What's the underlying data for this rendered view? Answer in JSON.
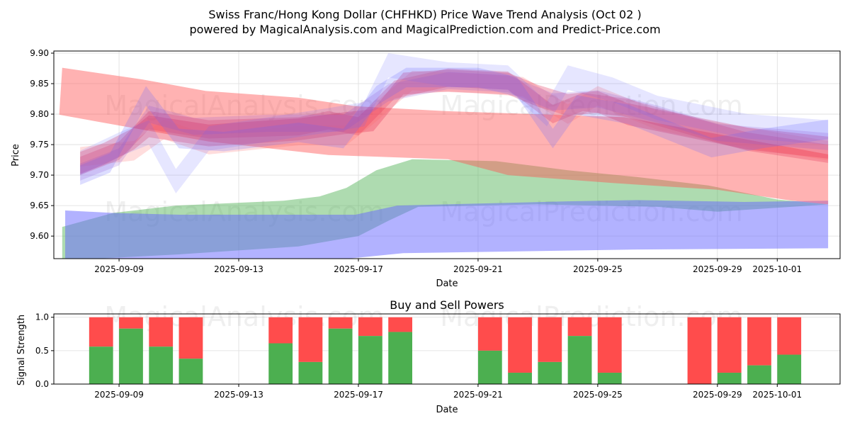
{
  "chart_data": [
    {
      "type": "area",
      "title": "Swiss Franc/Hong Kong Dollar (CHFHKD) Price Wave Trend Analysis (Oct 02 )",
      "subtitle": "powered by MagicalAnalysis.com and MagicalPrediction.com and Predict-Price.com",
      "xlabel": "Date",
      "ylabel": "Price",
      "x_origin": "2025-09-09",
      "xlim_days": [
        -2.18,
        24.1
      ],
      "ylim": [
        9.563,
        9.9035
      ],
      "grid": true,
      "yticks": [
        "9.60",
        "9.65",
        "9.70",
        "9.75",
        "9.80",
        "9.85",
        "9.90"
      ],
      "xticks": [
        {
          "label": "2025-09-09",
          "day": 0
        },
        {
          "label": "2025-09-13",
          "day": 4
        },
        {
          "label": "2025-09-17",
          "day": 8
        },
        {
          "label": "2025-09-21",
          "day": 12
        },
        {
          "label": "2025-09-25",
          "day": 16
        },
        {
          "label": "2025-09-29",
          "day": 20
        },
        {
          "label": "2025-10-01",
          "day": 22
        }
      ],
      "bands": [
        {
          "name": "green-band",
          "color": "#4caf50",
          "opacity": 0.45,
          "upper": [
            [
              -1.9,
              9.615
            ],
            [
              -0.2,
              9.638
            ],
            [
              1.9,
              9.65
            ],
            [
              5.5,
              9.658
            ],
            [
              6.7,
              9.665
            ],
            [
              7.6,
              9.679
            ],
            [
              8.6,
              9.708
            ],
            [
              9.8,
              9.726
            ],
            [
              12.6,
              9.723
            ],
            [
              15,
              9.708
            ],
            [
              17.3,
              9.697
            ],
            [
              19.7,
              9.683
            ],
            [
              22,
              9.66
            ],
            [
              23.7,
              9.652
            ]
          ],
          "lower": [
            [
              -1.9,
              9.56
            ],
            [
              2,
              9.57
            ],
            [
              6,
              9.583
            ],
            [
              8,
              9.6
            ],
            [
              9,
              9.625
            ],
            [
              10,
              9.648
            ],
            [
              14,
              9.652
            ],
            [
              18,
              9.648
            ],
            [
              20,
              9.64
            ],
            [
              23.7,
              9.652
            ]
          ]
        },
        {
          "name": "blue-band",
          "color": "#6666ff",
          "opacity": 0.5,
          "upper": [
            [
              -1.8,
              9.642
            ],
            [
              -0.2,
              9.638
            ],
            [
              2,
              9.635
            ],
            [
              7.9,
              9.635
            ],
            [
              9.3,
              9.65
            ],
            [
              15,
              9.657
            ],
            [
              17.3,
              9.659
            ],
            [
              20.9,
              9.656
            ],
            [
              23.7,
              9.658
            ]
          ],
          "lower": [
            [
              -1.8,
              9.54
            ],
            [
              5,
              9.55
            ],
            [
              9.5,
              9.572
            ],
            [
              17.3,
              9.578
            ],
            [
              23.7,
              9.58
            ]
          ]
        },
        {
          "name": "red-band",
          "color": "#ff5555",
          "opacity": 0.45,
          "upper": [
            [
              -1.9,
              9.876
            ],
            [
              0.76,
              9.857
            ],
            [
              2.9,
              9.838
            ],
            [
              6,
              9.827
            ],
            [
              7.9,
              9.813
            ],
            [
              10.9,
              9.805
            ],
            [
              16.9,
              9.795
            ],
            [
              23.7,
              9.734
            ]
          ],
          "lower": [
            [
              -2.0,
              9.799
            ],
            [
              3,
              9.755
            ],
            [
              7,
              9.733
            ],
            [
              11,
              9.726
            ],
            [
              13,
              9.7
            ],
            [
              16.5,
              9.687
            ],
            [
              20,
              9.676
            ],
            [
              22.5,
              9.658
            ],
            [
              23.7,
              9.652
            ]
          ]
        }
      ],
      "waves": [
        {
          "color": "#e0204a",
          "opacity": 0.28,
          "half_width": 0.018,
          "points": [
            [
              -1.3,
              9.72
            ],
            [
              -0.5,
              9.735
            ],
            [
              0.5,
              9.76
            ],
            [
              1,
              9.78
            ],
            [
              3,
              9.765
            ],
            [
              6,
              9.775
            ],
            [
              7.5,
              9.785
            ],
            [
              8.5,
              9.79
            ],
            [
              9.5,
              9.85
            ],
            [
              11,
              9.855
            ],
            [
              13,
              9.85
            ],
            [
              14,
              9.83
            ],
            [
              15,
              9.815
            ],
            [
              16,
              9.82
            ],
            [
              17,
              9.8
            ],
            [
              19,
              9.78
            ],
            [
              21,
              9.76
            ],
            [
              23.7,
              9.745
            ]
          ]
        },
        {
          "color": "#e0204a",
          "opacity": 0.25,
          "half_width": 0.015,
          "points": [
            [
              -1.3,
              9.715
            ],
            [
              0,
              9.74
            ],
            [
              1,
              9.79
            ],
            [
              3,
              9.775
            ],
            [
              6,
              9.78
            ],
            [
              7,
              9.79
            ],
            [
              8,
              9.78
            ],
            [
              9.2,
              9.84
            ],
            [
              11,
              9.86
            ],
            [
              13,
              9.855
            ],
            [
              14.5,
              9.8
            ],
            [
              15.5,
              9.82
            ],
            [
              17,
              9.81
            ],
            [
              19.5,
              9.775
            ],
            [
              21,
              9.755
            ],
            [
              23.7,
              9.735
            ]
          ]
        },
        {
          "color": "#ff6666",
          "opacity": 0.22,
          "half_width": 0.016,
          "points": [
            [
              -1.3,
              9.73
            ],
            [
              0.5,
              9.74
            ],
            [
              1.5,
              9.775
            ],
            [
              3,
              9.75
            ],
            [
              6,
              9.765
            ],
            [
              7.6,
              9.765
            ],
            [
              8.5,
              9.8
            ],
            [
              9.8,
              9.855
            ],
            [
              12,
              9.85
            ],
            [
              13.5,
              9.845
            ],
            [
              15,
              9.8
            ],
            [
              16,
              9.83
            ],
            [
              18,
              9.79
            ],
            [
              20,
              9.77
            ],
            [
              23.7,
              9.74
            ]
          ]
        },
        {
          "color": "#6666ff",
          "opacity": 0.22,
          "half_width": 0.016,
          "points": [
            [
              -1.3,
              9.7
            ],
            [
              -0.3,
              9.72
            ],
            [
              0.9,
              9.83
            ],
            [
              2,
              9.76
            ],
            [
              3.5,
              9.755
            ],
            [
              6,
              9.77
            ],
            [
              7.5,
              9.76
            ],
            [
              8.6,
              9.83
            ],
            [
              9.6,
              9.86
            ],
            [
              12,
              9.86
            ],
            [
              13.3,
              9.845
            ],
            [
              14.5,
              9.76
            ],
            [
              15.3,
              9.815
            ],
            [
              17,
              9.8
            ],
            [
              19.8,
              9.745
            ],
            [
              21.5,
              9.76
            ],
            [
              23.7,
              9.775
            ]
          ]
        },
        {
          "color": "#6666ff",
          "opacity": 0.16,
          "half_width": 0.02,
          "points": [
            [
              -1.3,
              9.72
            ],
            [
              0,
              9.75
            ],
            [
              1,
              9.77
            ],
            [
              1.9,
              9.69
            ],
            [
              3,
              9.76
            ],
            [
              5,
              9.775
            ],
            [
              7,
              9.79
            ],
            [
              8.2,
              9.8
            ],
            [
              9,
              9.88
            ],
            [
              11,
              9.865
            ],
            [
              13,
              9.86
            ],
            [
              14.3,
              9.8
            ],
            [
              15,
              9.86
            ],
            [
              16.5,
              9.84
            ],
            [
              18,
              9.81
            ],
            [
              21,
              9.78
            ],
            [
              23.7,
              9.77
            ]
          ]
        },
        {
          "color": "#8a4fd0",
          "opacity": 0.2,
          "half_width": 0.014,
          "points": [
            [
              -1.3,
              9.705
            ],
            [
              0,
              9.73
            ],
            [
              1,
              9.8
            ],
            [
              2.5,
              9.78
            ],
            [
              5,
              9.785
            ],
            [
              7.5,
              9.785
            ],
            [
              9,
              9.835
            ],
            [
              11,
              9.855
            ],
            [
              13,
              9.85
            ],
            [
              14.5,
              9.82
            ],
            [
              16,
              9.825
            ],
            [
              18,
              9.8
            ],
            [
              20,
              9.77
            ],
            [
              23.7,
              9.755
            ]
          ]
        }
      ],
      "watermarks": [
        "MagicalAnalysis.com",
        "MagicalPrediction.com"
      ]
    },
    {
      "type": "bar",
      "title": "Buy and Sell Powers",
      "xlabel": "Date",
      "ylabel": "Signal Strength",
      "ylim": [
        0,
        1.05
      ],
      "yticks": [
        "0.0",
        "0.5",
        "1.0"
      ],
      "buy_color": "#4caf50",
      "sell_color": "#ff4c4c",
      "bars": [
        {
          "day": -0.6,
          "buy": 0.56
        },
        {
          "day": 0.4,
          "buy": 0.83
        },
        {
          "day": 1.4,
          "buy": 0.56
        },
        {
          "day": 2.4,
          "buy": 0.38
        },
        {
          "day": 5.4,
          "buy": 0.61
        },
        {
          "day": 6.4,
          "buy": 0.33
        },
        {
          "day": 7.4,
          "buy": 0.83
        },
        {
          "day": 8.4,
          "buy": 0.72
        },
        {
          "day": 9.4,
          "buy": 0.78
        },
        {
          "day": 12.4,
          "buy": 0.5
        },
        {
          "day": 13.4,
          "buy": 0.17
        },
        {
          "day": 14.4,
          "buy": 0.33
        },
        {
          "day": 15.4,
          "buy": 0.72
        },
        {
          "day": 16.4,
          "buy": 0.17
        },
        {
          "day": 19.4,
          "buy": 0.0
        },
        {
          "day": 20.4,
          "buy": 0.17
        },
        {
          "day": 21.4,
          "buy": 0.28
        },
        {
          "day": 22.4,
          "buy": 0.44
        }
      ]
    }
  ]
}
